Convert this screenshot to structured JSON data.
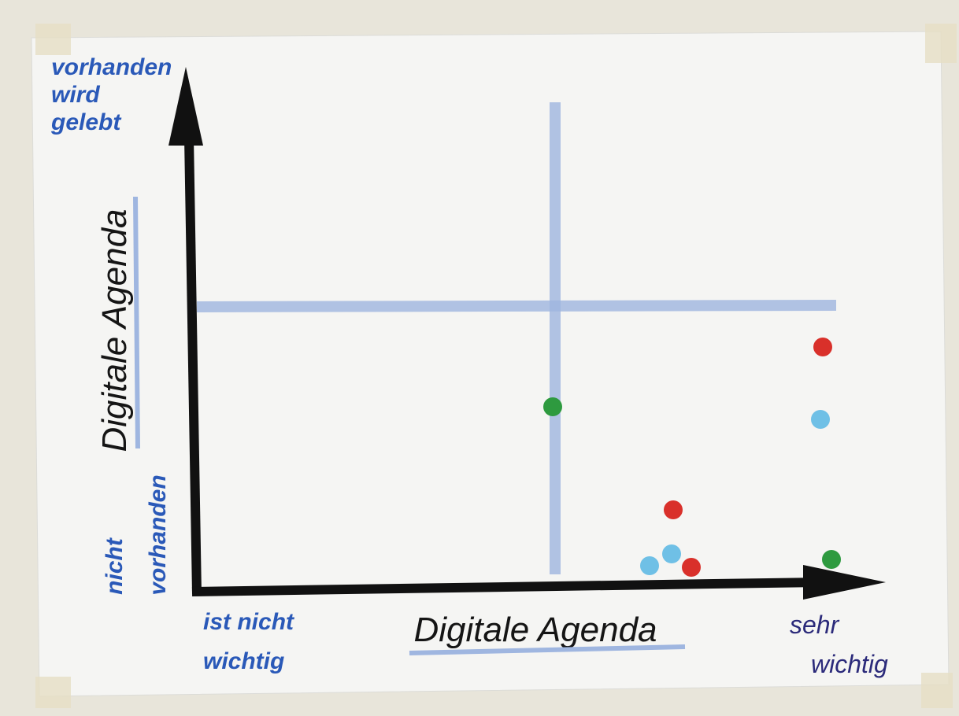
{
  "y_axis": {
    "title": "Digitale Agenda",
    "top": [
      "vorhanden",
      "wird",
      "gelebt"
    ],
    "bottom": [
      "nicht",
      "vorhanden"
    ]
  },
  "x_axis": {
    "title": "Digitale Agenda",
    "left": [
      "ist nicht",
      "wichtig"
    ],
    "right": [
      "sehr",
      "wichtig"
    ]
  }
}
